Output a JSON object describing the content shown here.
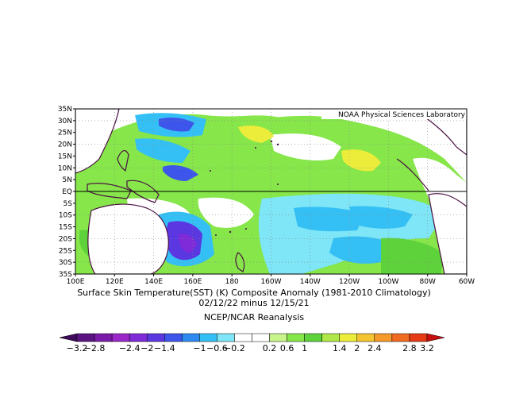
{
  "credit": "NOAA Physical Sciences Laboratory",
  "title_line1": "Surface Skin Temperature(SST) (K) Composite Anomaly (1981-2010 Climatology)",
  "title_line2": "02/12/22 minus 12/15/21",
  "source": "NCEP/NCAR Reanalysis",
  "lat_labels": [
    "35N",
    "30N",
    "25N",
    "20N",
    "15N",
    "10N",
    "5N",
    "EQ",
    "5S",
    "10S",
    "15S",
    "20S",
    "25S",
    "30S",
    "35S"
  ],
  "lon_labels": [
    "100E",
    "120E",
    "140E",
    "160E",
    "180",
    "160W",
    "140W",
    "120W",
    "100W",
    "80W",
    "60W"
  ],
  "colorbar": {
    "labels": [
      "−3.2",
      "−2.8",
      "−2.4",
      "−2",
      "−1.4",
      "−1",
      "−0.6",
      "−0.2",
      "0.2",
      "0.6",
      "1",
      "1.4",
      "2",
      "2.4",
      "2.8",
      "3.2"
    ],
    "colors": [
      "#3d0a5c",
      "#5a1482",
      "#7a1aa8",
      "#9a28c8",
      "#7f2bd9",
      "#5a37e0",
      "#3d55ea",
      "#2f8af0",
      "#34c0f5",
      "#7ee6f6",
      "#ffffff",
      "#ffffff",
      "#c8f58a",
      "#86e64a",
      "#5ed23a",
      "#b0e84a",
      "#ecec3a",
      "#f5c431",
      "#f59a2a",
      "#f06a1f",
      "#e63a16",
      "#c80f0f"
    ]
  },
  "map_colors": {
    "land": "#ffffff",
    "coast": "#4a1040",
    "blue_strong": "#3d55ea",
    "purple": "#7f2bd9",
    "blue_light": "#34c0f5",
    "cyan": "#7ee6f6",
    "green": "#86e64a",
    "green_dark": "#5ed23a",
    "yellow": "#ecec3a"
  }
}
